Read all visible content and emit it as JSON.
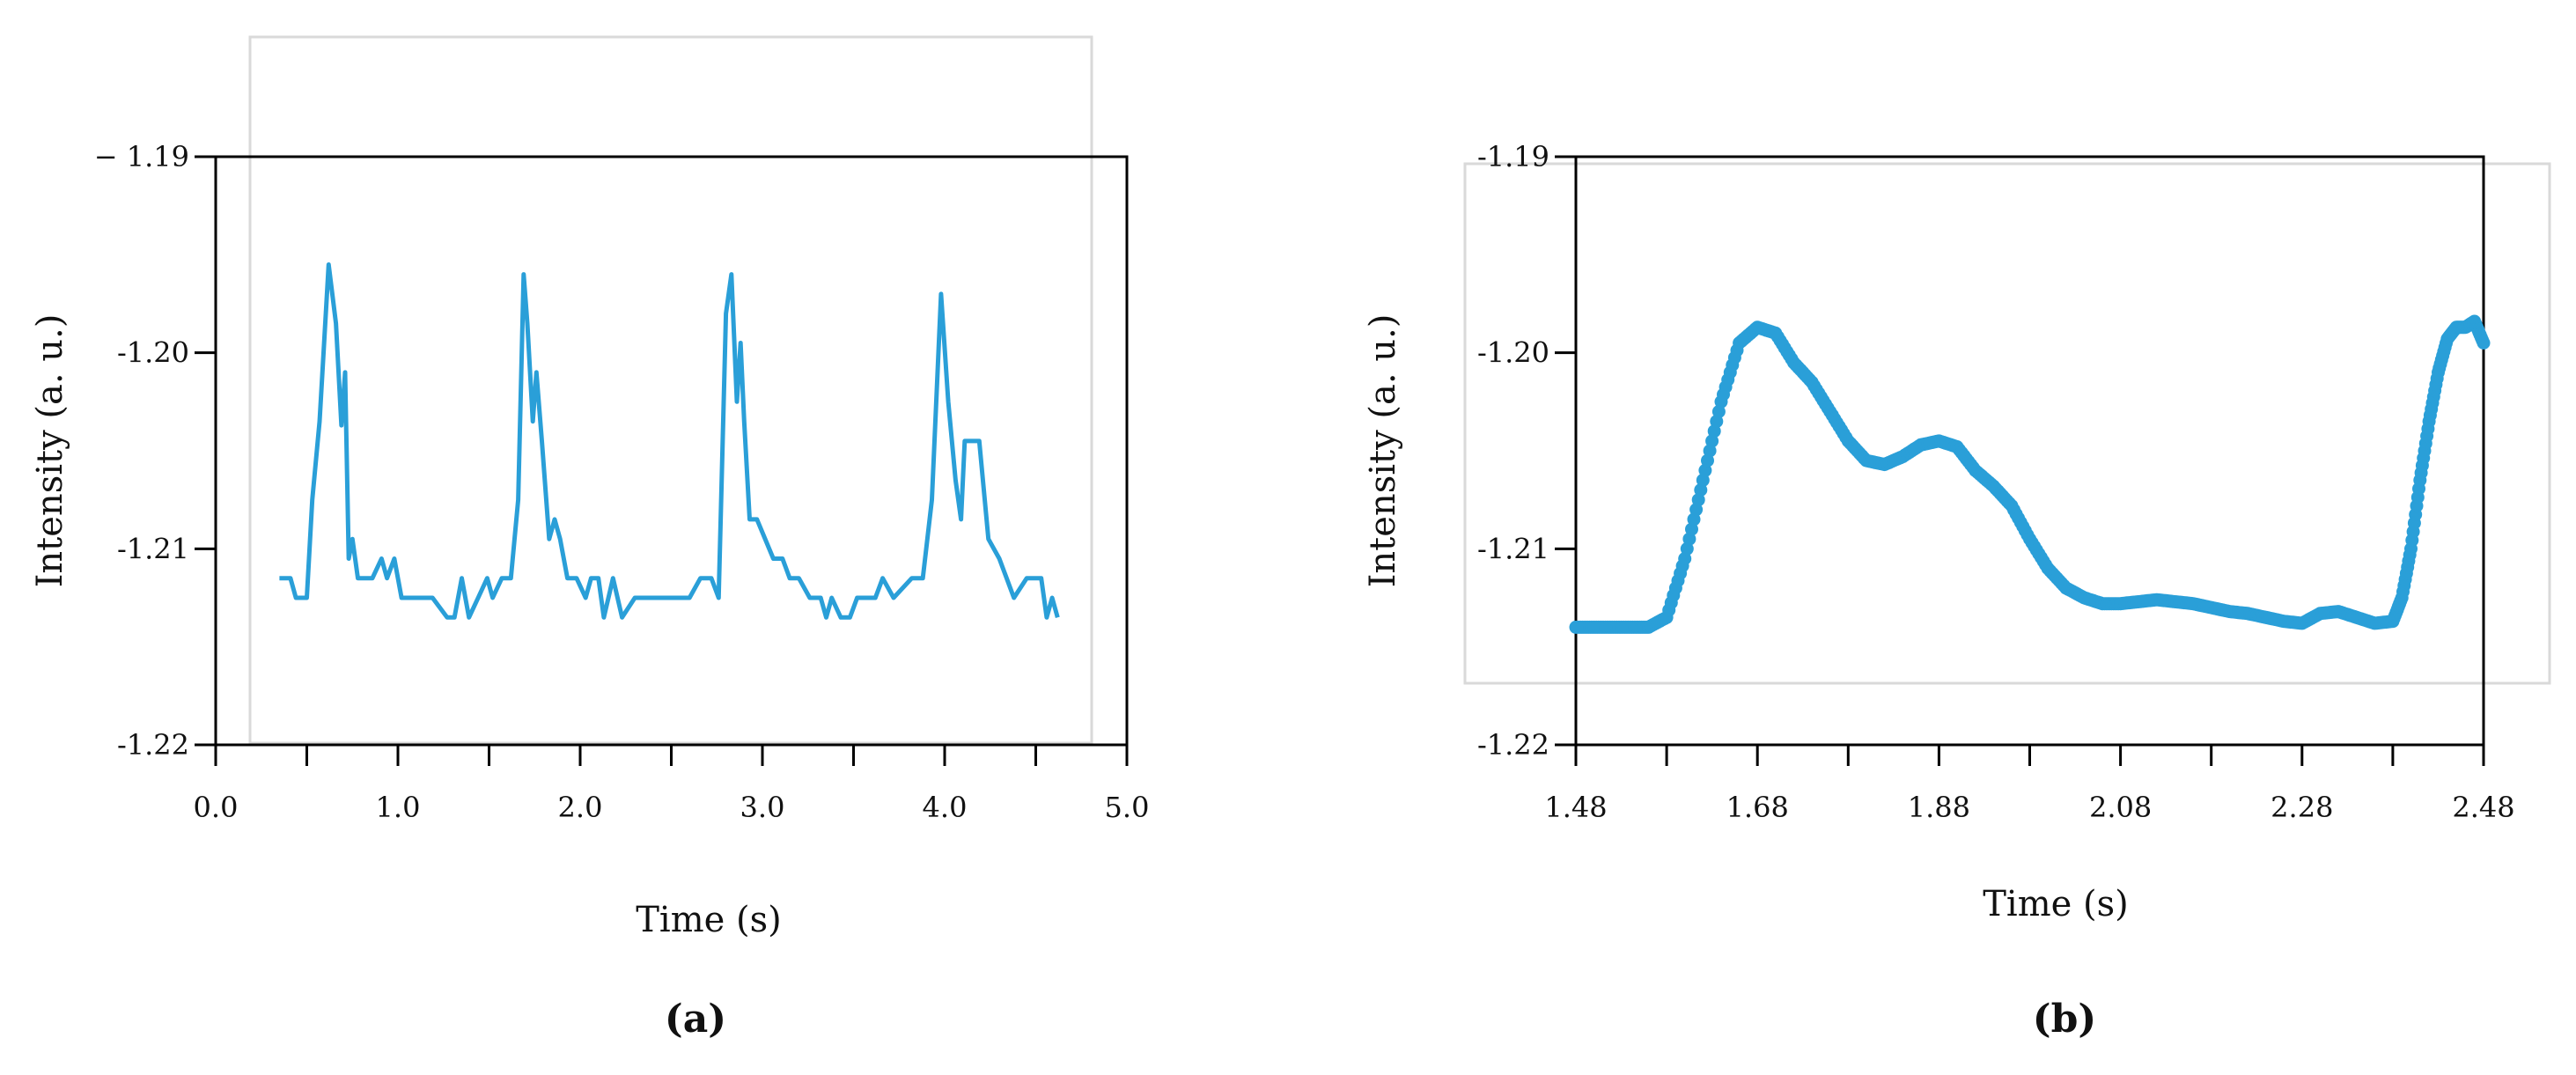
{
  "figure": {
    "series_color": "#2a9fd8",
    "frame_color": "#d9d9d9",
    "axis_color": "#000000"
  },
  "chart_data": [
    {
      "type": "line",
      "panel_label": "(a)",
      "xlabel": "Time (s)",
      "ylabel": "Intensity (a. u.)",
      "xlim": [
        0.0,
        5.0
      ],
      "ylim": [
        -1.22,
        -1.19
      ],
      "x_ticks": [
        0.0,
        0.5,
        1.0,
        1.5,
        2.0,
        2.5,
        3.0,
        3.5,
        4.0,
        4.5,
        5.0
      ],
      "x_tick_labels": [
        "0.0",
        "",
        "1.0",
        "",
        "2.0",
        "",
        "3.0",
        "",
        "4.0",
        "",
        "5.0"
      ],
      "y_ticks": [
        -1.22,
        -1.21,
        -1.2,
        -1.19
      ],
      "y_tick_labels": [
        "-1.22",
        "-1.21",
        "-1.20",
        "− 1.19"
      ],
      "grid": false,
      "series": [
        {
          "name": "Intensity",
          "x": [
            0.35,
            0.41,
            0.44,
            0.5,
            0.53,
            0.57,
            0.62,
            0.66,
            0.69,
            0.71,
            0.73,
            0.75,
            0.78,
            0.82,
            0.86,
            0.91,
            0.94,
            0.98,
            1.02,
            1.06,
            1.11,
            1.19,
            1.27,
            1.31,
            1.35,
            1.39,
            1.44,
            1.49,
            1.52,
            1.57,
            1.62,
            1.66,
            1.69,
            1.71,
            1.74,
            1.76,
            1.79,
            1.83,
            1.86,
            1.89,
            1.93,
            1.98,
            2.03,
            2.06,
            2.1,
            2.13,
            2.18,
            2.23,
            2.3,
            2.4,
            2.5,
            2.6,
            2.66,
            2.72,
            2.76,
            2.8,
            2.83,
            2.86,
            2.88,
            2.9,
            2.93,
            2.97,
            3.06,
            3.11,
            3.15,
            3.2,
            3.26,
            3.32,
            3.35,
            3.38,
            3.43,
            3.48,
            3.52,
            3.57,
            3.62,
            3.66,
            3.72,
            3.82,
            3.88,
            3.93,
            3.98,
            4.02,
            4.06,
            4.09,
            4.11,
            4.14,
            4.19,
            4.24,
            4.3,
            4.38,
            4.45,
            4.49,
            4.53,
            4.56,
            4.59,
            4.62
          ],
          "y": [
            -1.2115,
            -1.2115,
            -1.2125,
            -1.2125,
            -1.2075,
            -1.2035,
            -1.1955,
            -1.1985,
            -1.2037,
            -1.201,
            -1.2105,
            -1.2095,
            -1.2115,
            -1.2115,
            -1.2115,
            -1.2105,
            -1.2115,
            -1.2105,
            -1.2125,
            -1.2125,
            -1.2125,
            -1.2125,
            -1.2135,
            -1.2135,
            -1.2115,
            -1.2135,
            -1.2125,
            -1.2115,
            -1.2125,
            -1.2115,
            -1.2115,
            -1.2075,
            -1.196,
            -1.1985,
            -1.2035,
            -1.201,
            -1.2045,
            -1.2095,
            -1.2085,
            -1.2095,
            -1.2115,
            -1.2115,
            -1.2125,
            -1.2115,
            -1.2115,
            -1.2135,
            -1.2115,
            -1.2135,
            -1.2125,
            -1.2125,
            -1.2125,
            -1.2125,
            -1.2115,
            -1.2115,
            -1.2125,
            -1.198,
            -1.196,
            -1.2025,
            -1.1995,
            -1.2035,
            -1.2085,
            -1.2085,
            -1.2105,
            -1.2105,
            -1.2115,
            -1.2115,
            -1.2125,
            -1.2125,
            -1.2135,
            -1.2125,
            -1.2135,
            -1.2135,
            -1.2125,
            -1.2125,
            -1.2125,
            -1.2115,
            -1.2125,
            -1.2115,
            -1.2115,
            -1.2075,
            -1.197,
            -1.2025,
            -1.2065,
            -1.2085,
            -1.2045,
            -1.2045,
            -1.2045,
            -1.2095,
            -1.2105,
            -1.2125,
            -1.2115,
            -1.2115,
            -1.2115,
            -1.2135,
            -1.2125,
            -1.2135
          ]
        }
      ]
    },
    {
      "type": "scatter",
      "panel_label": "(b)",
      "xlabel": "Time (s)",
      "ylabel": "Intensity (a. u.)",
      "xlim": [
        1.48,
        2.48
      ],
      "ylim": [
        -1.22,
        -1.19
      ],
      "x_ticks": [
        1.48,
        1.58,
        1.68,
        1.78,
        1.88,
        1.98,
        2.08,
        2.18,
        2.28,
        2.38,
        2.48
      ],
      "x_tick_labels": [
        "1.48",
        "",
        "1.68",
        "",
        "1.88",
        "",
        "2.08",
        "",
        "2.28",
        "",
        "2.48"
      ],
      "y_ticks": [
        -1.22,
        -1.21,
        -1.2,
        -1.19
      ],
      "y_tick_labels": [
        "-1.22",
        "-1.21",
        "-1.20",
        "-1.19"
      ],
      "grid": false,
      "series": [
        {
          "name": "Intensity",
          "x": [
            1.48,
            1.5,
            1.52,
            1.54,
            1.56,
            1.58,
            1.6,
            1.62,
            1.64,
            1.66,
            1.68,
            1.7,
            1.72,
            1.74,
            1.76,
            1.78,
            1.8,
            1.82,
            1.84,
            1.86,
            1.88,
            1.9,
            1.92,
            1.94,
            1.96,
            1.98,
            2.0,
            2.02,
            2.04,
            2.06,
            2.08,
            2.1,
            2.12,
            2.14,
            2.16,
            2.18,
            2.2,
            2.22,
            2.24,
            2.26,
            2.28,
            2.3,
            2.32,
            2.34,
            2.36,
            2.38,
            2.39,
            2.4,
            2.41,
            2.42,
            2.43,
            2.44,
            2.45,
            2.46,
            2.47,
            2.48
          ],
          "y": [
            -1.214,
            -1.214,
            -1.214,
            -1.214,
            -1.214,
            -1.2135,
            -1.2105,
            -1.2065,
            -1.2025,
            -1.1995,
            -1.1987,
            -1.199,
            -1.2005,
            -1.2015,
            -1.203,
            -1.2045,
            -1.2055,
            -1.2057,
            -1.2053,
            -1.2047,
            -1.2045,
            -1.2048,
            -1.206,
            -1.2068,
            -1.2078,
            -1.2095,
            -1.211,
            -1.212,
            -1.2125,
            -1.2128,
            -1.2128,
            -1.2127,
            -1.2126,
            -1.2127,
            -1.2128,
            -1.213,
            -1.2132,
            -1.2133,
            -1.2135,
            -1.2137,
            -1.2138,
            -1.2133,
            -1.2132,
            -1.2135,
            -1.2138,
            -1.2137,
            -1.2125,
            -1.21,
            -1.2065,
            -1.2035,
            -1.201,
            -1.1993,
            -1.1987,
            -1.1987,
            -1.1984,
            -1.1995
          ]
        }
      ]
    }
  ]
}
